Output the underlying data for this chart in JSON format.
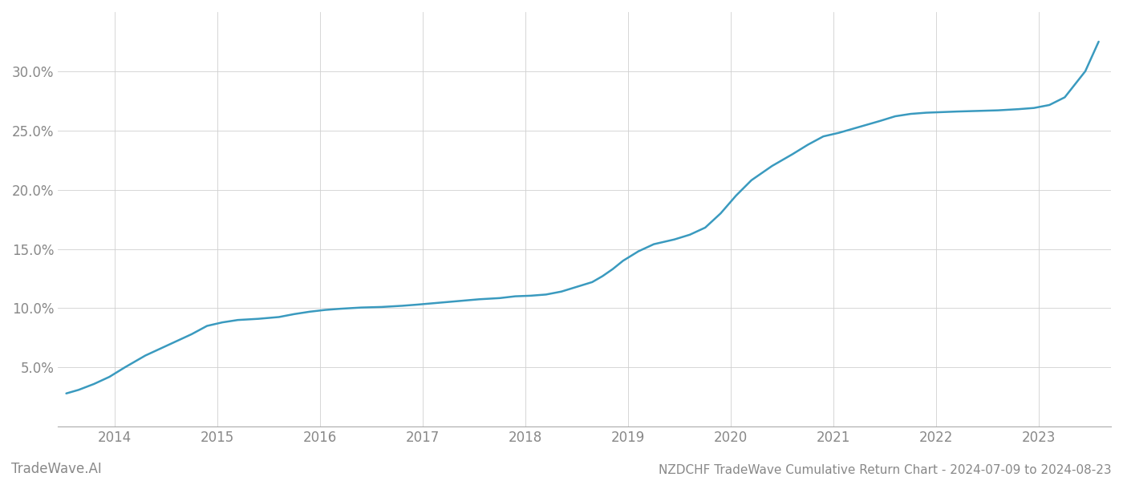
{
  "title": "NZDCHF TradeWave Cumulative Return Chart - 2024-07-09 to 2024-08-23",
  "watermark": "TradeWave.AI",
  "line_color": "#3a9abf",
  "background_color": "#ffffff",
  "grid_color": "#d0d0d0",
  "x_years": [
    2014,
    2015,
    2016,
    2017,
    2018,
    2019,
    2020,
    2021,
    2022,
    2023
  ],
  "x_data": [
    2013.53,
    2013.65,
    2013.8,
    2013.95,
    2014.1,
    2014.3,
    2014.55,
    2014.75,
    2014.9,
    2015.05,
    2015.2,
    2015.4,
    2015.6,
    2015.75,
    2015.9,
    2016.05,
    2016.2,
    2016.4,
    2016.6,
    2016.8,
    2016.95,
    2017.15,
    2017.35,
    2017.55,
    2017.75,
    2017.9,
    2018.05,
    2018.2,
    2018.35,
    2018.5,
    2018.65,
    2018.75,
    2018.85,
    2018.95,
    2019.1,
    2019.25,
    2019.45,
    2019.6,
    2019.75,
    2019.9,
    2020.05,
    2020.2,
    2020.4,
    2020.6,
    2020.75,
    2020.9,
    2021.05,
    2021.25,
    2021.45,
    2021.6,
    2021.75,
    2021.9,
    2022.05,
    2022.2,
    2022.4,
    2022.6,
    2022.7,
    2022.8,
    2022.95,
    2023.1,
    2023.25,
    2023.45,
    2023.58
  ],
  "y_data": [
    2.8,
    3.1,
    3.6,
    4.2,
    5.0,
    6.0,
    7.0,
    7.8,
    8.5,
    8.8,
    9.0,
    9.1,
    9.25,
    9.5,
    9.7,
    9.85,
    9.95,
    10.05,
    10.1,
    10.2,
    10.3,
    10.45,
    10.6,
    10.75,
    10.85,
    11.0,
    11.05,
    11.15,
    11.4,
    11.8,
    12.2,
    12.7,
    13.3,
    14.0,
    14.8,
    15.4,
    15.8,
    16.2,
    16.8,
    18.0,
    19.5,
    20.8,
    22.0,
    23.0,
    23.8,
    24.5,
    24.8,
    25.3,
    25.8,
    26.2,
    26.4,
    26.5,
    26.55,
    26.6,
    26.65,
    26.7,
    26.75,
    26.8,
    26.9,
    27.15,
    27.8,
    30.0,
    32.5
  ],
  "ylim": [
    0,
    35
  ],
  "yticks": [
    5.0,
    10.0,
    15.0,
    20.0,
    25.0,
    30.0
  ],
  "xlim": [
    2013.45,
    2023.7
  ],
  "title_fontsize": 11,
  "watermark_fontsize": 12,
  "tick_fontsize": 12,
  "tick_color": "#888888",
  "line_width": 1.8
}
